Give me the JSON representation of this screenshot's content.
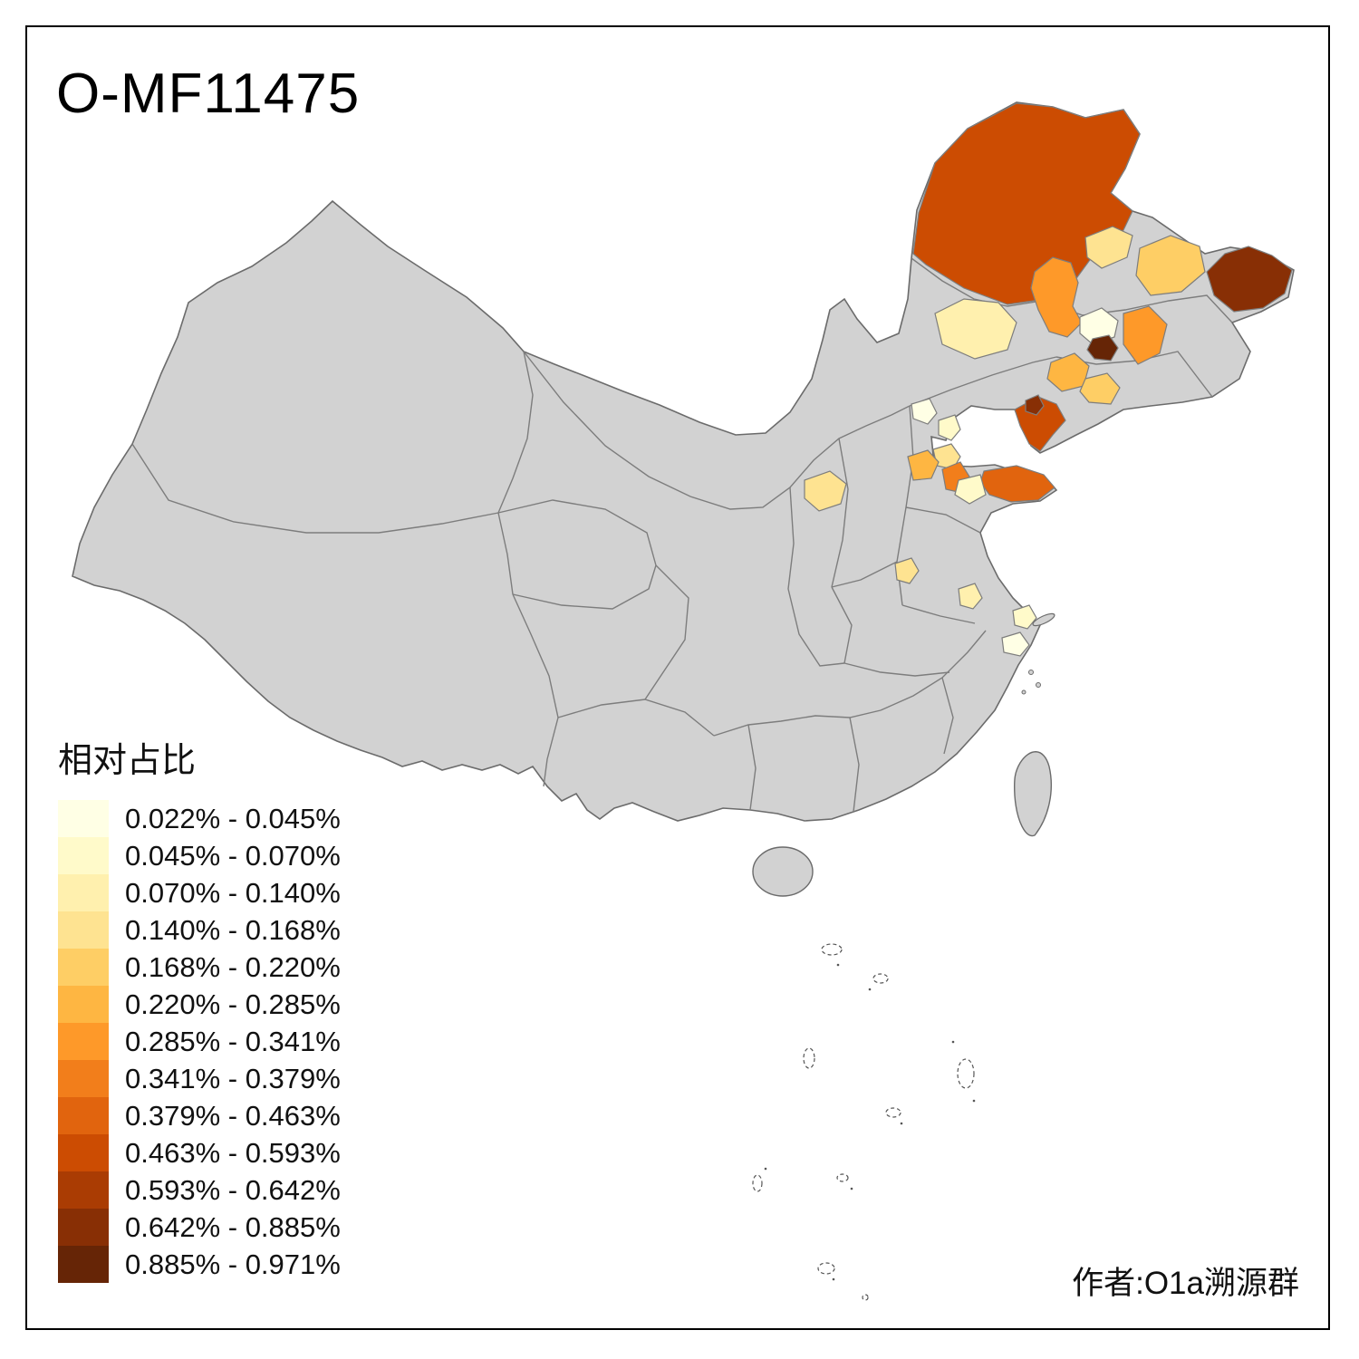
{
  "title": "O-MF11475",
  "attribution": "作者:O1a溯源群",
  "legend": {
    "title": "相对占比",
    "bins": [
      {
        "range": "0.022% - 0.045%",
        "color": "#FFFFE5"
      },
      {
        "range": "0.045% - 0.070%",
        "color": "#FFFACA"
      },
      {
        "range": "0.070% - 0.140%",
        "color": "#FFF0AE"
      },
      {
        "range": "0.140% - 0.168%",
        "color": "#FEE391"
      },
      {
        "range": "0.168% - 0.220%",
        "color": "#FECE65"
      },
      {
        "range": "0.220% - 0.285%",
        "color": "#FEB642"
      },
      {
        "range": "0.285% - 0.341%",
        "color": "#FE9929"
      },
      {
        "range": "0.341% - 0.379%",
        "color": "#F27E1B"
      },
      {
        "range": "0.379% - 0.463%",
        "color": "#E1640E"
      },
      {
        "range": "0.463% - 0.593%",
        "color": "#CC4C02"
      },
      {
        "range": "0.593% - 0.642%",
        "color": "#AA3C03"
      },
      {
        "range": "0.642% - 0.885%",
        "color": "#882F05"
      },
      {
        "range": "0.885% - 0.971%",
        "color": "#662506"
      }
    ]
  },
  "map": {
    "base_fill": "#D2D2D2",
    "outline_color": "#6B6B6B",
    "province_line_color": "#7D7D7D",
    "island_dash_color": "#555555",
    "regions": [
      {
        "color": "#CC4C02",
        "bin": "0.463% - 0.593%"
      },
      {
        "color": "#882F05",
        "bin": "0.642% - 0.885%"
      },
      {
        "color": "#FE9929",
        "bin": "0.285% - 0.341%"
      },
      {
        "color": "#FEE391",
        "bin": "0.140% - 0.168%"
      },
      {
        "color": "#FECE65",
        "bin": "0.168% - 0.220%"
      },
      {
        "color": "#FFF0AE",
        "bin": "0.070% - 0.140%"
      },
      {
        "color": "#FFFFE5",
        "bin": "0.022% - 0.045%"
      },
      {
        "color": "#FE9929",
        "bin": "0.285% - 0.341%"
      },
      {
        "color": "#662506",
        "bin": "0.885% - 0.971%"
      },
      {
        "color": "#FEB642",
        "bin": "0.220% - 0.285%"
      },
      {
        "color": "#FECE65",
        "bin": "0.168% - 0.220%"
      },
      {
        "color": "#CC4C02",
        "bin": "0.463% - 0.593%"
      },
      {
        "color": "#882F05",
        "bin": "0.642% - 0.885%"
      },
      {
        "color": "#FFFFE5",
        "bin": "0.022% - 0.045%"
      },
      {
        "color": "#FFFACA",
        "bin": "0.045% - 0.070%"
      },
      {
        "color": "#FEE391",
        "bin": "0.140% - 0.168%"
      },
      {
        "color": "#FEE391",
        "bin": "0.140% - 0.168%"
      },
      {
        "color": "#FEB642",
        "bin": "0.220% - 0.285%"
      },
      {
        "color": "#F27E1B",
        "bin": "0.341% - 0.379%"
      },
      {
        "color": "#E1640E",
        "bin": "0.379% - 0.463%"
      },
      {
        "color": "#FFFACA",
        "bin": "0.045% - 0.070%"
      },
      {
        "color": "#FEE391",
        "bin": "0.140% - 0.168%"
      },
      {
        "color": "#FFF0AE",
        "bin": "0.070% - 0.140%"
      },
      {
        "color": "#FFFACA",
        "bin": "0.045% - 0.070%"
      },
      {
        "color": "#FFFFE5",
        "bin": "0.022% - 0.045%"
      }
    ]
  }
}
